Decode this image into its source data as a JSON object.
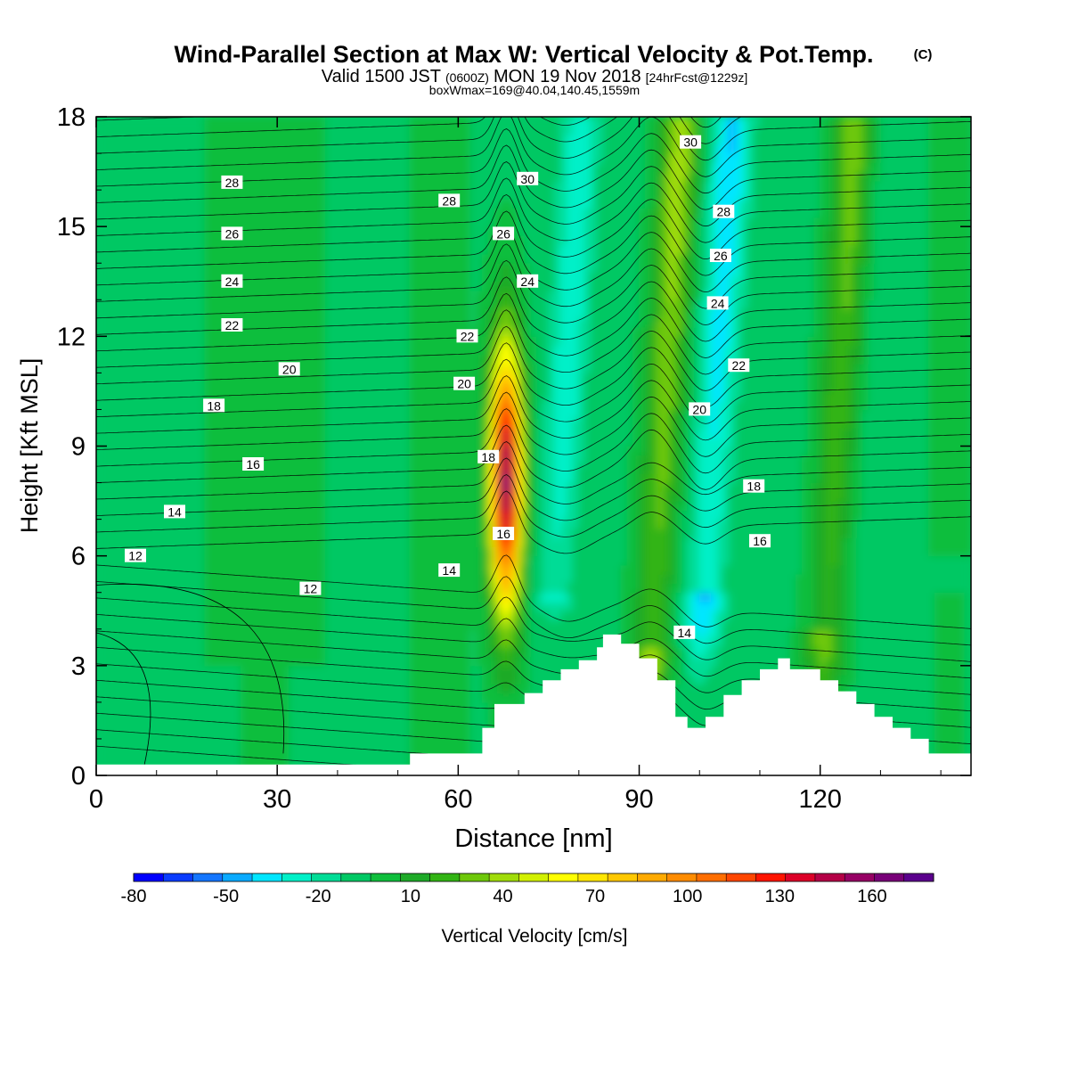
{
  "chart_data": {
    "type": "heatmap",
    "title": "Wind-Parallel Section at Max W: Vertical Velocity & Pot.Temp.",
    "title_mark": "(C)",
    "subtitle_parts": [
      "Valid 1500 JST",
      "(0600Z)",
      "MON 19 Nov 2018",
      "[24hrFcst@1229z]"
    ],
    "subtitle2": "boxWmax=169@40.04,140.45,1559m",
    "xlabel": "Distance [nm]",
    "ylabel": "Height [Kft MSL]",
    "xlim": [
      0,
      145
    ],
    "ylim": [
      0,
      18
    ],
    "xticks": [
      "0",
      "30",
      "60",
      "90",
      "120"
    ],
    "xtick_values": [
      0,
      30,
      60,
      90,
      120
    ],
    "yticks": [
      "0",
      "3",
      "6",
      "9",
      "12",
      "15",
      "18"
    ],
    "ytick_values": [
      0,
      3,
      6,
      9,
      12,
      15,
      18
    ],
    "colorbar": {
      "label": "Vertical Velocity [cm/s]",
      "min": -80,
      "max": 180,
      "step": 10,
      "tick_labels": [
        "-80",
        "-50",
        "-20",
        "10",
        "40",
        "70",
        "100",
        "130",
        "160"
      ],
      "tick_values": [
        -80,
        -50,
        -20,
        10,
        40,
        70,
        100,
        130,
        160
      ],
      "colors": [
        "#0000ff",
        "#0a3cff",
        "#1476ff",
        "#0aaaff",
        "#00e6ff",
        "#00f0c8",
        "#00dc96",
        "#00c864",
        "#0fbe3c",
        "#1eaa28",
        "#32b414",
        "#6ec80a",
        "#a0dc0a",
        "#d2f000",
        "#ffff00",
        "#ffe600",
        "#ffc800",
        "#ffaa00",
        "#ff8c00",
        "#ff6e00",
        "#ff4600",
        "#ff1400",
        "#dc0028",
        "#b40046",
        "#960064",
        "#780078",
        "#5a008c"
      ]
    },
    "vertical_velocity_features": [
      {
        "feature": "updraft core",
        "x": 68,
        "y_bottom": 3.0,
        "y_top": 12.5,
        "max_w": 169
      },
      {
        "feature": "updraft band",
        "x": 92,
        "y_bottom": 3.5,
        "y_top": 18,
        "max_w": 50
      },
      {
        "feature": "updraft band",
        "x": 121,
        "y_bottom": 4.0,
        "y_top": 18,
        "max_w": 40
      },
      {
        "feature": "downdraft band",
        "x": 101,
        "y_bottom": 5.0,
        "y_top": 18,
        "min_w": -40
      },
      {
        "feature": "downdraft band",
        "x": 76,
        "y_bottom": 5.0,
        "y_top": 9.0,
        "min_w": -25
      }
    ],
    "theta_labels": [
      {
        "text": "28",
        "x": 22.5,
        "y": 16.2
      },
      {
        "text": "26",
        "x": 22.5,
        "y": 14.8
      },
      {
        "text": "24",
        "x": 22.5,
        "y": 13.5
      },
      {
        "text": "22",
        "x": 22.5,
        "y": 12.3
      },
      {
        "text": "20",
        "x": 32,
        "y": 11.1
      },
      {
        "text": "18",
        "x": 19.5,
        "y": 10.1
      },
      {
        "text": "16",
        "x": 26,
        "y": 8.5
      },
      {
        "text": "14",
        "x": 13,
        "y": 7.2
      },
      {
        "text": "12",
        "x": 6.5,
        "y": 6.0
      },
      {
        "text": "12",
        "x": 35.5,
        "y": 5.1
      },
      {
        "text": "14",
        "x": 58.5,
        "y": 5.6
      },
      {
        "text": "16",
        "x": 67.5,
        "y": 6.6
      },
      {
        "text": "18",
        "x": 65,
        "y": 8.7
      },
      {
        "text": "20",
        "x": 61,
        "y": 10.7
      },
      {
        "text": "22",
        "x": 61.5,
        "y": 12.0
      },
      {
        "text": "24",
        "x": 71.5,
        "y": 13.5
      },
      {
        "text": "26",
        "x": 67.5,
        "y": 14.8
      },
      {
        "text": "28",
        "x": 58.5,
        "y": 15.7
      },
      {
        "text": "30",
        "x": 71.5,
        "y": 16.3
      },
      {
        "text": "30",
        "x": 98.5,
        "y": 17.3
      },
      {
        "text": "28",
        "x": 104,
        "y": 15.4
      },
      {
        "text": "26",
        "x": 103.5,
        "y": 14.2
      },
      {
        "text": "24",
        "x": 103,
        "y": 12.9
      },
      {
        "text": "22",
        "x": 106.5,
        "y": 11.2
      },
      {
        "text": "20",
        "x": 100,
        "y": 10.0
      },
      {
        "text": "18",
        "x": 109,
        "y": 7.9
      },
      {
        "text": "16",
        "x": 110,
        "y": 6.4
      },
      {
        "text": "14",
        "x": 97.5,
        "y": 3.9
      }
    ],
    "terrain": {
      "x": [
        0,
        52,
        52,
        64,
        64,
        66,
        66,
        71,
        71,
        74,
        74,
        77,
        77,
        80,
        80,
        83,
        83,
        84,
        84,
        87,
        87,
        90,
        90,
        93,
        93,
        96,
        96,
        98,
        98,
        101,
        101,
        104,
        104,
        107,
        107,
        110,
        110,
        113,
        113,
        115,
        115,
        120,
        120,
        123,
        123,
        126,
        126,
        129,
        129,
        132,
        132,
        135,
        135,
        138,
        138,
        141,
        141,
        145
      ],
      "y": [
        0.3,
        0.3,
        0.6,
        0.6,
        1.3,
        1.3,
        1.95,
        1.95,
        2.25,
        2.25,
        2.6,
        2.6,
        2.9,
        2.9,
        3.15,
        3.15,
        3.5,
        3.5,
        3.85,
        3.85,
        3.6,
        3.6,
        3.2,
        3.2,
        2.6,
        2.6,
        1.6,
        1.6,
        1.3,
        1.3,
        1.6,
        1.6,
        2.2,
        2.2,
        2.6,
        2.6,
        2.9,
        2.9,
        3.2,
        3.2,
        2.9,
        2.9,
        2.6,
        2.6,
        2.3,
        2.3,
        1.95,
        1.95,
        1.6,
        1.6,
        1.3,
        1.3,
        1.0,
        1.0,
        0.6,
        0.6,
        0.6,
        0.6
      ]
    }
  }
}
